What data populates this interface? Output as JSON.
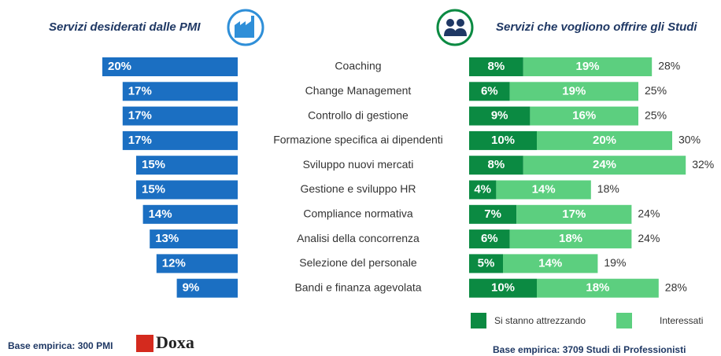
{
  "chart_data": {
    "type": "butterfly-bar",
    "left_title": "Servizi desiderati dalle PMI",
    "right_title": "Servizi che vogliono offrire gli Studi",
    "categories": [
      "Coaching",
      "Change Management",
      "Controllo di gestione",
      "Formazione specifica ai dipendenti",
      "Sviluppo nuovi mercati",
      "Gestione e sviluppo HR",
      "Compliance normativa",
      "Analisi della concorrenza",
      "Selezione del personale",
      "Bandi e finanza agevolata"
    ],
    "left_values": [
      20,
      17,
      17,
      17,
      15,
      15,
      14,
      13,
      12,
      9
    ],
    "left_value_labels": [
      "20%",
      "17%",
      "17%",
      "17%",
      "15%",
      "15%",
      "14%",
      "13%",
      "12%",
      "9%"
    ],
    "left_color": "#1b6fc2",
    "series": [
      {
        "name": "Si stanno attrezzando",
        "color": "#0b8a42",
        "values": [
          8,
          6,
          9,
          10,
          8,
          4,
          7,
          6,
          5,
          10
        ],
        "value_labels": [
          "8%",
          "6%",
          "9%",
          "10%",
          "8%",
          "4%",
          "7%",
          "6%",
          "5%",
          "10%"
        ]
      },
      {
        "name": "Interessati",
        "color": "#5ccf7f",
        "values": [
          19,
          19,
          16,
          20,
          24,
          14,
          17,
          18,
          14,
          18
        ],
        "value_labels": [
          "19%",
          "19%",
          "16%",
          "20%",
          "24%",
          "14%",
          "17%",
          "18%",
          "14%",
          "18%"
        ]
      }
    ],
    "totals": [
      28,
      25,
      25,
      30,
      32,
      18,
      24,
      24,
      19,
      28
    ],
    "total_labels": [
      "28%",
      "25%",
      "25%",
      "30%",
      "32%",
      "18%",
      "24%",
      "24%",
      "19%",
      "28%"
    ],
    "left_footnote": "Base empirica: 300 PMI",
    "logo": "Doxa",
    "right_footnote": "Base empirica: 3709 Studi di Professionisti"
  }
}
